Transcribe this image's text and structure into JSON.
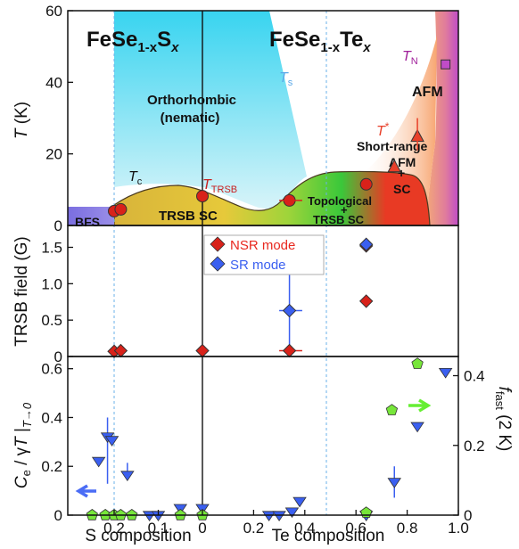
{
  "chart_data": [
    {
      "type": "phase-diagram",
      "panel": "top",
      "ylabel_italic": "T",
      "ylabel_rest": " (K)",
      "ylim": [
        0,
        60
      ],
      "yticks": [
        "0",
        "20",
        "40",
        "60"
      ],
      "title_left": {
        "base": "FeSe",
        "sub": "1-x",
        "el": "S",
        "x": "x"
      },
      "title_right": {
        "base": "FeSe",
        "sub": "1-x",
        "el": "Te",
        "x": "x"
      },
      "regions": {
        "ortho1": "Orthorhombic",
        "ortho2": "(nematic)",
        "afm": "AFM",
        "sr1": "Short-range",
        "sr2": "AFM",
        "plus1": "+",
        "sc": "SC",
        "bfs": "BFS",
        "trsbsc": "TRSB SC",
        "topo1": "Topological",
        "plus2": "+",
        "topo2": "TRSB SC"
      },
      "labels": {
        "Tc": {
          "main": "T",
          "sub": "c"
        },
        "Ts": {
          "main": "T",
          "sub": "s"
        },
        "TN": {
          "main": "T",
          "sub": "N"
        },
        "Tstar": {
          "main": "T",
          "sup": "*"
        },
        "TTRSB": {
          "main": "T",
          "sub": "TRSB"
        }
      },
      "points_TTRSB": [
        {
          "x": -0.2,
          "y": 4.0
        },
        {
          "x": -0.185,
          "y": 4.5
        },
        {
          "x": 0.0,
          "y": 8.2
        },
        {
          "x": 0.34,
          "y": 7.0
        },
        {
          "x": 0.64,
          "y": 11.5
        }
      ],
      "points_Tstar": [
        {
          "x": 0.75,
          "y": 16.5
        },
        {
          "x": 0.84,
          "y": 25.0
        }
      ],
      "point_TN": {
        "x": 0.95,
        "y": 45.0
      }
    },
    {
      "type": "scatter",
      "panel": "middle",
      "ylabel": "TRSB field (G)",
      "ylim": [
        0,
        1.8
      ],
      "yticks": [
        "0",
        "0.5",
        "1.0",
        "1.5"
      ],
      "legend": [
        {
          "name": "NSR mode",
          "color": "#e8281f"
        },
        {
          "name": "SR mode",
          "color": "#3a5ff0"
        }
      ],
      "legend_position": "top-center",
      "series": [
        {
          "name": "NSR mode",
          "points": [
            {
              "x": -0.2,
              "y": 0.07
            },
            {
              "x": -0.185,
              "y": 0.08
            },
            {
              "x": 0.0,
              "y": 0.08
            },
            {
              "x": 0.34,
              "y": 0.08
            },
            {
              "x": 0.64,
              "y": 0.76
            },
            {
              "x": 0.64,
              "y": 1.52
            }
          ]
        },
        {
          "name": "SR mode",
          "points": [
            {
              "x": 0.34,
              "y": 0.63
            },
            {
              "x": 0.64,
              "y": 1.54
            }
          ]
        }
      ]
    },
    {
      "type": "scatter",
      "panel": "bottom",
      "ylabel": "C_e / γT |_T→0",
      "ylabel_parts": {
        "c": "C",
        "csub": "e",
        "mid": " / γ",
        "t": "T",
        "bar": " |",
        "lim": "T→0"
      },
      "y2label": {
        "main": "f",
        "sub": "fast",
        "rest": " (2 K)"
      },
      "ylim": [
        0,
        0.65
      ],
      "yticks": [
        "0",
        "0.2",
        "0.4",
        "0.6"
      ],
      "y2lim": [
        0,
        0.455
      ],
      "y2ticks": [
        "0",
        "0.2",
        "0.4"
      ],
      "series": [
        {
          "name": "Ce/γT",
          "color": "#77e63a",
          "marker": "pentagon",
          "points": [
            {
              "x": -0.25,
              "y": 0.0
            },
            {
              "x": -0.22,
              "y": 0.0
            },
            {
              "x": -0.2,
              "y": 0.0
            },
            {
              "x": -0.185,
              "y": 0.0
            },
            {
              "x": -0.16,
              "y": 0.0
            },
            {
              "x": -0.05,
              "y": 0.0
            },
            {
              "x": 0.0,
              "y": 0.0
            },
            {
              "x": 0.64,
              "y": 0.01
            },
            {
              "x": 0.74,
              "y": 0.43
            },
            {
              "x": 0.84,
              "y": 0.62
            }
          ]
        },
        {
          "name": "f_fast",
          "color": "#3a5ff0",
          "marker": "triangle-down",
          "points": [
            {
              "x": -0.235,
              "y": 0.155
            },
            {
              "x": -0.215,
              "y": 0.225
            },
            {
              "x": -0.205,
              "y": 0.215
            },
            {
              "x": -0.17,
              "y": 0.115
            },
            {
              "x": -0.12,
              "y": 0.0
            },
            {
              "x": -0.1,
              "y": 0.0
            },
            {
              "x": -0.05,
              "y": 0.02
            },
            {
              "x": 0.0,
              "y": 0.02
            },
            {
              "x": 0.26,
              "y": 0.0
            },
            {
              "x": 0.3,
              "y": 0.0
            },
            {
              "x": 0.35,
              "y": 0.01
            },
            {
              "x": 0.38,
              "y": 0.04
            },
            {
              "x": 0.64,
              "y": 0.0
            },
            {
              "x": 0.75,
              "y": 0.095
            },
            {
              "x": 0.84,
              "y": 0.255
            },
            {
              "x": 0.95,
              "y": 0.41
            }
          ]
        }
      ]
    }
  ],
  "xaxis": {
    "ticks": [
      {
        "x": -0.2,
        "label": "0.2"
      },
      {
        "x": -0.1,
        "label": "0.1"
      },
      {
        "x": 0.0,
        "label": "0"
      },
      {
        "x": 0.2,
        "label": "0.2"
      },
      {
        "x": 0.4,
        "label": "0.4"
      },
      {
        "x": 0.6,
        "label": "0.6"
      },
      {
        "x": 0.8,
        "label": "0.8"
      },
      {
        "x": 1.0,
        "label": "1.0"
      }
    ],
    "xlabel_left": "S composition",
    "xlabel_right": "Te composition"
  },
  "colors": {
    "nematic": "#5fd8ef",
    "afm": "#c95ac8",
    "sc_yellow": "#e6c93a",
    "sc_green": "#6cd23a",
    "sc_red": "#e83a24",
    "marker_red": "#d8221a",
    "marker_blue": "#3a5ff0",
    "marker_green": "#77e63a",
    "arrow_blue": "#4a6cf5",
    "arrow_green": "#66ee33"
  }
}
